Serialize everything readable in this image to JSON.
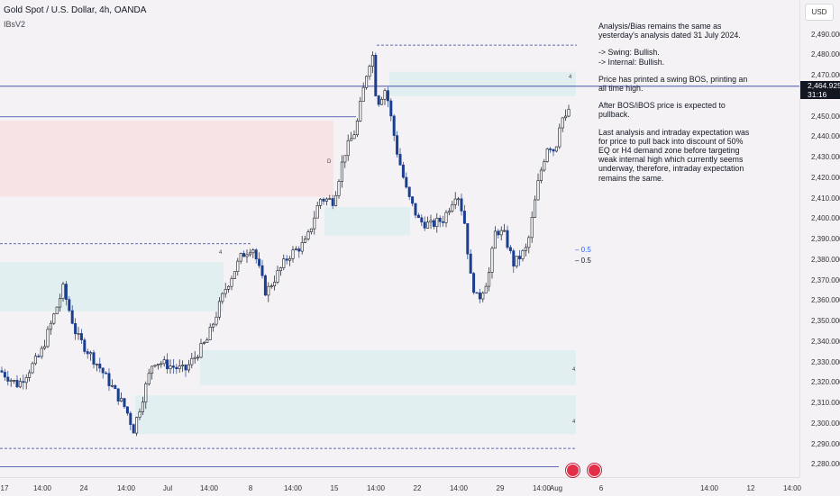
{
  "header": {
    "symbol": "Gold Spot / U.S. Dollar, 4h, OANDA",
    "indicator": "IBsV2"
  },
  "currency": "USD",
  "price_tag": {
    "price": "2,464.925",
    "countdown": "31:16"
  },
  "notes": [
    "Analysis/Bias remains the same as yesterday's analysis dated 31 July 2024.",
    "-> Swing:  Bullish.\n-> Internal:  Bullish.",
    "Price has printed a swing BOS, printing an all time high.",
    "After BOS/iBOS price is expected to pullback.",
    "Last analysis and intraday expectation was for price to pull back into discount of 50% EQ or H4 demand zone before targeting weak internal high which currently seems underway, therefore, intraday expectation remains the same."
  ],
  "fib_labels": {
    "blue": "0.5",
    "black": "0.5"
  },
  "zone_markers": [
    "4",
    "4",
    "4",
    "4",
    "D"
  ],
  "colors": {
    "bull": "#131722",
    "bear": "#1b3e8f",
    "supply": "#f7dfe1",
    "demand": "#ddeff0",
    "line": "#2f3f9e",
    "fib_blue": "#2962ff",
    "flag": "#e2304b",
    "background": "#f5f2f6"
  },
  "chart_data": {
    "type": "candlestick",
    "title": "Gold Spot / U.S. Dollar, 4h, OANDA",
    "ylim": [
      2274,
      2500
    ],
    "y_ticks": [
      2490,
      2480,
      2470,
      2460,
      2450,
      2440,
      2430,
      2420,
      2410,
      2400,
      2390,
      2380,
      2370,
      2360,
      2350,
      2340,
      2330,
      2320,
      2310,
      2300,
      2290,
      2280
    ],
    "y_tick_labels": [
      "2,490.000",
      "2,480.000",
      "2,470.000",
      "2,460.000",
      "2,450.000",
      "2,440.000",
      "2,430.000",
      "2,420.000",
      "2,410.000",
      "2,400.000",
      "2,390.000",
      "2,380.000",
      "2,370.000",
      "2,360.000",
      "2,350.000",
      "2,340.000",
      "2,330.000",
      "2,320.000",
      "2,310.000",
      "2,300.000",
      "2,290.000",
      "2,280.000"
    ],
    "x_ticks": [
      "17",
      "14:00",
      "24",
      "14:00",
      "Jul",
      "14:00",
      "8",
      "14:00",
      "15",
      "14:00",
      "22",
      "14:00",
      "29",
      "14:00",
      "Aug",
      "6",
      "14:00",
      "12",
      "14:00"
    ],
    "current_price": 2464.925,
    "path_anchors": [
      [
        0,
        2326
      ],
      [
        20,
        2319
      ],
      [
        45,
        2334
      ],
      [
        70,
        2366
      ],
      [
        85,
        2343
      ],
      [
        110,
        2328
      ],
      [
        140,
        2307
      ],
      [
        148,
        2297
      ],
      [
        170,
        2331
      ],
      [
        205,
        2326
      ],
      [
        230,
        2341
      ],
      [
        250,
        2366
      ],
      [
        268,
        2382
      ],
      [
        280,
        2387
      ],
      [
        295,
        2364
      ],
      [
        320,
        2382
      ],
      [
        340,
        2389
      ],
      [
        355,
        2410
      ],
      [
        370,
        2409
      ],
      [
        382,
        2432
      ],
      [
        395,
        2444
      ],
      [
        406,
        2470
      ],
      [
        413,
        2482
      ],
      [
        418,
        2456
      ],
      [
        428,
        2464
      ],
      [
        440,
        2434
      ],
      [
        452,
        2412
      ],
      [
        465,
        2399
      ],
      [
        478,
        2397
      ],
      [
        492,
        2400
      ],
      [
        507,
        2414
      ],
      [
        515,
        2400
      ],
      [
        522,
        2372
      ],
      [
        530,
        2360
      ],
      [
        542,
        2372
      ],
      [
        550,
        2395
      ],
      [
        560,
        2392
      ],
      [
        570,
        2378
      ],
      [
        585,
        2386
      ],
      [
        598,
        2420
      ],
      [
        608,
        2437
      ],
      [
        616,
        2433
      ],
      [
        622,
        2450
      ],
      [
        630,
        2448
      ],
      [
        633,
        2465
      ]
    ],
    "zones": [
      {
        "kind": "supply",
        "x0": 0,
        "x1": 370,
        "y0": 2448,
        "y1": 2411
      },
      {
        "kind": "demand",
        "x0": 0,
        "x1": 248,
        "y0": 2379,
        "y1": 2355
      },
      {
        "kind": "demand",
        "x0": 360,
        "x1": 455,
        "y0": 2406,
        "y1": 2392
      },
      {
        "kind": "demand",
        "x0": 432,
        "x1": 639,
        "y0": 2472,
        "y1": 2460
      },
      {
        "kind": "demand",
        "x0": 222,
        "x1": 639,
        "y0": 2336,
        "y1": 2319
      },
      {
        "kind": "demand",
        "x0": 150,
        "x1": 639,
        "y0": 2314,
        "y1": 2295
      }
    ],
    "lines": [
      {
        "style": "solid",
        "x0": 0,
        "x1": 395,
        "y": 2450
      },
      {
        "style": "solid",
        "x0": 0,
        "x1": 887,
        "y": 2464.9
      },
      {
        "style": "dashed",
        "x0": 418,
        "x1": 640,
        "y": 2485
      },
      {
        "style": "dashed",
        "x0": 0,
        "x1": 278,
        "y": 2388
      },
      {
        "style": "dashed",
        "x0": 0,
        "x1": 640,
        "y": 2288
      },
      {
        "style": "solid",
        "x0": 0,
        "x1": 620,
        "y": 2279
      }
    ]
  }
}
